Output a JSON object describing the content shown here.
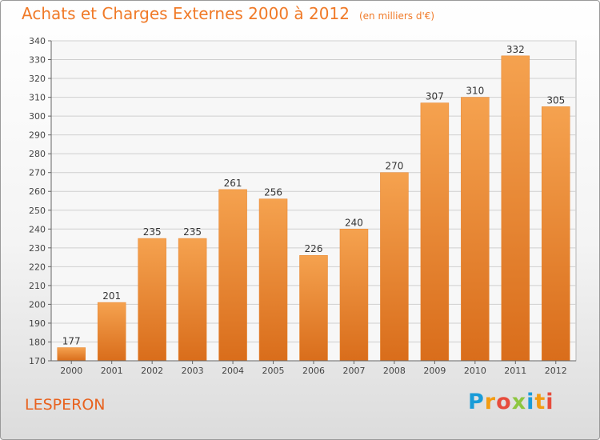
{
  "title": "Achats et Charges Externes 2000 à 2012",
  "unit": "(en milliers d'€)",
  "commune": "LESPERON",
  "logo": {
    "text": "Proxiti",
    "colors": [
      "#1a9cd8",
      "#f39c12",
      "#e74c3c",
      "#8dc63f",
      "#1a9cd8",
      "#f39c12",
      "#e74c3c"
    ]
  },
  "colors": {
    "title": "#f07a28",
    "bar_top": "#f5a24f",
    "bar_bottom": "#d96d1b",
    "grid": "#cfcfcf",
    "plot_bg": "#f7f7f7"
  },
  "chart_data": {
    "type": "bar",
    "title": "Achats et Charges Externes 2000 à 2012",
    "subtitle": "(en milliers d'€)",
    "categories": [
      "2000",
      "2001",
      "2002",
      "2003",
      "2004",
      "2005",
      "2006",
      "2007",
      "2008",
      "2009",
      "2010",
      "2011",
      "2012"
    ],
    "values": [
      177,
      201,
      235,
      235,
      261,
      256,
      226,
      240,
      270,
      307,
      310,
      332,
      305
    ],
    "ylim": [
      170,
      340
    ],
    "yticks": [
      170,
      180,
      190,
      200,
      210,
      220,
      230,
      240,
      250,
      260,
      270,
      280,
      290,
      300,
      310,
      320,
      330,
      340
    ],
    "grid": true,
    "data_labels": true
  }
}
